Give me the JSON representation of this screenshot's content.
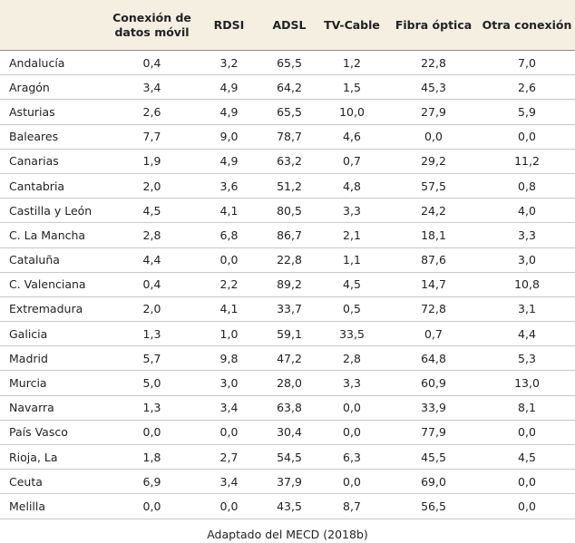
{
  "table": {
    "headers": [
      "",
      "Conexión de datos móvil",
      "RDSI",
      "ADSL",
      "TV-Cable",
      "Fibra óptica",
      "Otra conexión"
    ],
    "rows": [
      [
        "Andalucía",
        "0,4",
        "3,2",
        "65,5",
        "1,2",
        "22,8",
        "7,0"
      ],
      [
        "Aragón",
        "3,4",
        "4,9",
        "64,2",
        "1,5",
        "45,3",
        "2,6"
      ],
      [
        "Asturias",
        "2,6",
        "4,9",
        "65,5",
        "10,0",
        "27,9",
        "5,9"
      ],
      [
        "Baleares",
        "7,7",
        "9,0",
        "78,7",
        "4,6",
        "0,0",
        "0,0"
      ],
      [
        "Canarias",
        "1,9",
        "4,9",
        "63,2",
        "0,7",
        "29,2",
        "11,2"
      ],
      [
        "Cantabria",
        "2,0",
        "3,6",
        "51,2",
        "4,8",
        "57,5",
        "0,8"
      ],
      [
        "Castilla y León",
        "4,5",
        "4,1",
        "80,5",
        "3,3",
        "24,2",
        "4,0"
      ],
      [
        "C. La Mancha",
        "2,8",
        "6,8",
        "86,7",
        "2,1",
        "18,1",
        "3,3"
      ],
      [
        "Cataluña",
        "4,4",
        "0,0",
        "22,8",
        "1,1",
        "87,6",
        "3,0"
      ],
      [
        "C. Valenciana",
        "0,4",
        "2,2",
        "89,2",
        "4,5",
        "14,7",
        "10,8"
      ],
      [
        "Extremadura",
        "2,0",
        "4,1",
        "33,7",
        "0,5",
        "72,8",
        "3,1"
      ],
      [
        "Galicia",
        "1,3",
        "1,0",
        "59,1",
        "33,5",
        "0,7",
        "4,4"
      ],
      [
        "Madrid",
        "5,7",
        "9,8",
        "47,2",
        "2,8",
        "64,8",
        "5,3"
      ],
      [
        "Murcia",
        "5,0",
        "3,0",
        "28,0",
        "3,3",
        "60,9",
        "13,0"
      ],
      [
        "Navarra",
        "1,3",
        "3,4",
        "63,8",
        "0,0",
        "33,9",
        "8,1"
      ],
      [
        "País Vasco",
        "0,0",
        "0,0",
        "30,4",
        "0,0",
        "77,9",
        "0,0"
      ],
      [
        "Rioja, La",
        "1,8",
        "2,7",
        "54,5",
        "6,3",
        "45,5",
        "4,5"
      ],
      [
        "Ceuta",
        "6,9",
        "3,4",
        "37,9",
        "0,0",
        "69,0",
        "0,0"
      ],
      [
        "Melilla",
        "0,0",
        "0,0",
        "43,5",
        "8,7",
        "56,5",
        "0,0"
      ]
    ]
  },
  "caption": "Adaptado del MECD (2018b)"
}
